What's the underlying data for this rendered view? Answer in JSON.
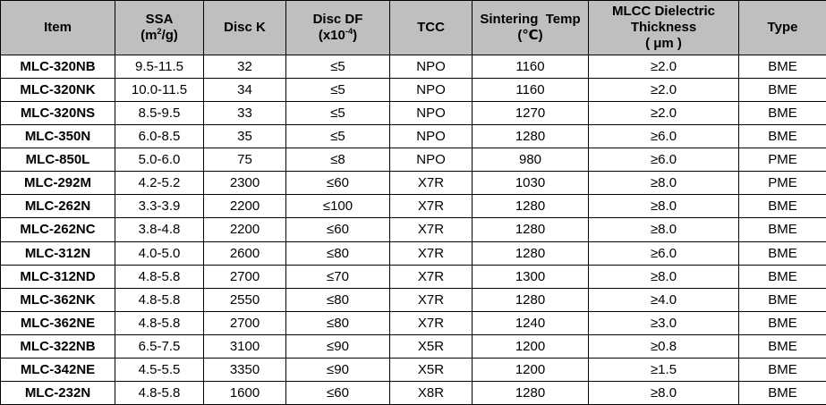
{
  "colors": {
    "header_bg": "#bfbfbf",
    "grid_border": "#000000",
    "body_bg": "#ffffff",
    "text": "#000000"
  },
  "chart_data": {
    "type": "table",
    "columns": [
      {
        "id": "item",
        "label": "Item",
        "lines": [
          [
            {
              "t": "Item"
            }
          ]
        ]
      },
      {
        "id": "ssa",
        "label": "SSA (m²/g)",
        "lines": [
          [
            {
              "t": "SSA"
            }
          ],
          [
            {
              "t": "(m"
            },
            {
              "t": "2",
              "sup": true
            },
            {
              "t": "/g)"
            }
          ]
        ]
      },
      {
        "id": "disc-k",
        "label": "Disc K",
        "lines": [
          [
            {
              "t": "Disc K"
            }
          ]
        ]
      },
      {
        "id": "disc-df",
        "label": "Disc DF (x10⁻⁴)",
        "lines": [
          [
            {
              "t": "Disc DF"
            }
          ],
          [
            {
              "t": "(x10"
            },
            {
              "t": "-4",
              "sup": true
            },
            {
              "t": ")"
            }
          ]
        ]
      },
      {
        "id": "tcc",
        "label": "TCC",
        "lines": [
          [
            {
              "t": "TCC"
            }
          ]
        ]
      },
      {
        "id": "sintering-temp",
        "label": "Sintering Temp (℃)",
        "lines": [
          [
            {
              "t": "Sintering  Temp"
            }
          ],
          [
            {
              "t": "(℃)"
            }
          ]
        ]
      },
      {
        "id": "dielectric-thickness",
        "label": "MLCC Dielectric Thickness ( μm )",
        "lines": [
          [
            {
              "t": "MLCC Dielectric"
            }
          ],
          [
            {
              "t": "Thickness"
            }
          ],
          [
            {
              "t": "( μm )"
            }
          ]
        ]
      },
      {
        "id": "type",
        "label": "Type",
        "lines": [
          [
            {
              "t": "Type"
            }
          ]
        ]
      }
    ],
    "rows": [
      [
        "MLC-320NB",
        "9.5-11.5",
        "32",
        "≤5",
        "NPO",
        "1160",
        "≥2.0",
        "BME"
      ],
      [
        "MLC-320NK",
        "10.0-11.5",
        "34",
        "≤5",
        "NPO",
        "1160",
        "≥2.0",
        "BME"
      ],
      [
        "MLC-320NS",
        "8.5-9.5",
        "33",
        "≤5",
        "NPO",
        "1270",
        "≥2.0",
        "BME"
      ],
      [
        "MLC-350N",
        "6.0-8.5",
        "35",
        "≤5",
        "NPO",
        "1280",
        "≥6.0",
        "BME"
      ],
      [
        "MLC-850L",
        "5.0-6.0",
        "75",
        "≤8",
        "NPO",
        "980",
        "≥6.0",
        "PME"
      ],
      [
        "MLC-292M",
        "4.2-5.2",
        "2300",
        "≤60",
        "X7R",
        "1030",
        "≥8.0",
        "PME"
      ],
      [
        "MLC-262N",
        "3.3-3.9",
        "2200",
        "≤100",
        "X7R",
        "1280",
        "≥8.0",
        "BME"
      ],
      [
        "MLC-262NC",
        "3.8-4.8",
        "2200",
        "≤60",
        "X7R",
        "1280",
        "≥8.0",
        "BME"
      ],
      [
        "MLC-312N",
        "4.0-5.0",
        "2600",
        "≤80",
        "X7R",
        "1280",
        "≥6.0",
        "BME"
      ],
      [
        "MLC-312ND",
        "4.8-5.8",
        "2700",
        "≤70",
        "X7R",
        "1300",
        "≥8.0",
        "BME"
      ],
      [
        "MLC-362NK",
        "4.8-5.8",
        "2550",
        "≤80",
        "X7R",
        "1280",
        "≥4.0",
        "BME"
      ],
      [
        "MLC-362NE",
        "4.8-5.8",
        "2700",
        "≤80",
        "X7R",
        "1240",
        "≥3.0",
        "BME"
      ],
      [
        "MLC-322NB",
        "6.5-7.5",
        "3100",
        "≤90",
        "X5R",
        "1200",
        "≥0.8",
        "BME"
      ],
      [
        "MLC-342NE",
        "4.5-5.5",
        "3350",
        "≤90",
        "X5R",
        "1200",
        "≥1.5",
        "BME"
      ],
      [
        "MLC-232N",
        "4.8-5.8",
        "1600",
        "≤60",
        "X8R",
        "1280",
        "≥8.0",
        "BME"
      ]
    ]
  }
}
